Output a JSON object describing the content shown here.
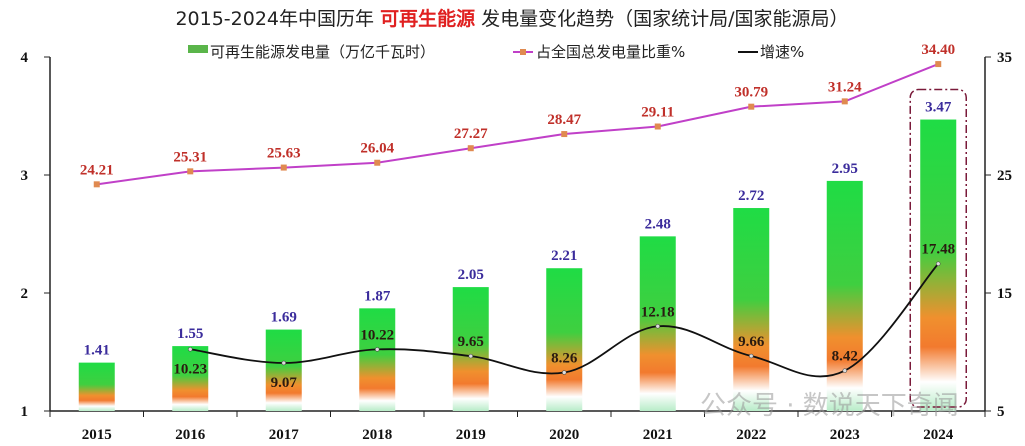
{
  "title": {
    "prefix": "2015-2024年中国历年 ",
    "highlight": "可再生能源",
    "suffix": " 发电量变化趋势（国家统计局/国家能源局）"
  },
  "watermark": "公众号 · 数说天下奇闻",
  "chart_data": {
    "type": "bar+line",
    "categories": [
      "2015",
      "2016",
      "2017",
      "2018",
      "2019",
      "2020",
      "2021",
      "2022",
      "2023",
      "2024"
    ],
    "series": [
      {
        "name": "可再生能源发电量（万亿千瓦时）",
        "type": "bar",
        "axis": "left",
        "values": [
          1.41,
          1.55,
          1.69,
          1.87,
          2.05,
          2.21,
          2.48,
          2.72,
          2.95,
          3.47
        ],
        "labels": [
          "1.41",
          "1.55",
          "1.69",
          "1.87",
          "2.05",
          "2.21",
          "2.48",
          "2.72",
          "2.95",
          "3.47"
        ]
      },
      {
        "name": "占全国总发电量比重%",
        "type": "line",
        "axis": "right",
        "color": "#c040c8",
        "values": [
          24.21,
          25.31,
          25.63,
          26.04,
          27.27,
          28.47,
          29.11,
          30.79,
          31.24,
          34.4
        ],
        "labels": [
          "24.21",
          "25.31",
          "25.63",
          "26.04",
          "27.27",
          "28.47",
          "29.11",
          "30.79",
          "31.24",
          "34.40"
        ]
      },
      {
        "name": "增速%",
        "type": "line",
        "axis": "right",
        "color": "#111111",
        "values": [
          null,
          10.23,
          9.07,
          10.22,
          9.65,
          8.26,
          12.18,
          9.66,
          8.42,
          17.48
        ],
        "labels": [
          "",
          "10.23",
          "9.07",
          "10.22",
          "9.65",
          "8.26",
          "12.18",
          "9.66",
          "8.42",
          "17.48"
        ]
      }
    ],
    "left_axis": {
      "range": [
        1,
        4
      ],
      "ticks": [
        "1",
        "2",
        "3",
        "4"
      ]
    },
    "right_axis": {
      "range": [
        5,
        35
      ],
      "ticks": [
        "5",
        "15",
        "25",
        "35"
      ]
    },
    "highlight_category": "2024",
    "legend_position": "top",
    "grid": false,
    "colors": {
      "bar_top": "#22dd44",
      "bar_mid": "#f07a2a",
      "share_line": "#c040c8",
      "share_marker": "#e08a50",
      "growth_line": "#111111",
      "highlight_box": "#7a1a3a"
    }
  }
}
